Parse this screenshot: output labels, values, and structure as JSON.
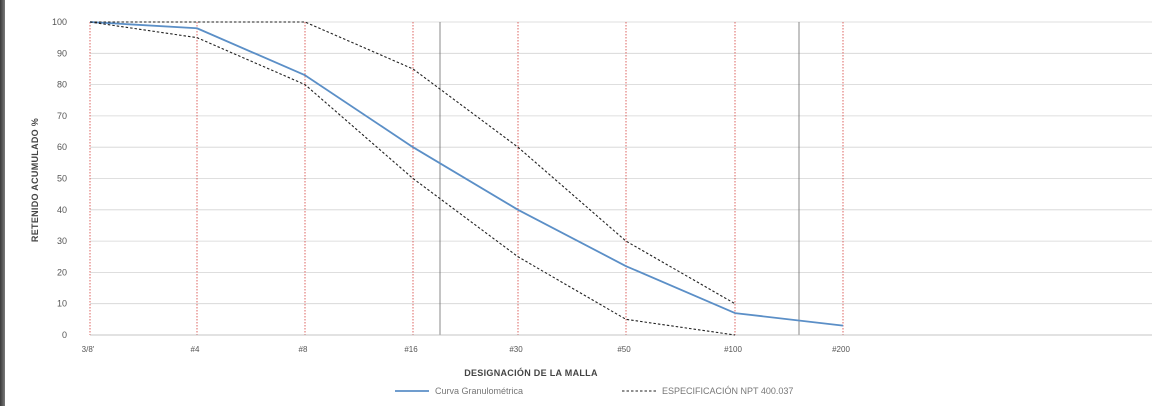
{
  "chart_data": {
    "type": "line",
    "title": "",
    "xlabel": "DESIGNACIÓN DE LA MALLA",
    "ylabel": "RETENIDO ACUMULADO %",
    "ylim": [
      0,
      100
    ],
    "yticks": [
      0,
      10,
      20,
      30,
      40,
      50,
      60,
      70,
      80,
      90,
      100
    ],
    "categories": [
      "3/8'",
      "#4",
      "#8",
      "#16",
      "#30",
      "#50",
      "#100",
      "#200"
    ],
    "series": [
      {
        "name": "Curva Granulométrica",
        "style": "solid",
        "color": "#5b8fc7",
        "x": [
          "3/8'",
          "#4",
          "#8",
          "#16",
          "#30",
          "#50",
          "#100",
          "#200"
        ],
        "values": [
          100,
          98,
          83,
          60,
          40,
          22,
          7,
          3
        ]
      },
      {
        "name": "ESPECIFICACIÓN NPT 400.037",
        "style": "dashed",
        "color": "#222222",
        "x": [
          "3/8'",
          "#4",
          "#8",
          "#16",
          "#30",
          "#50",
          "#100"
        ],
        "values": [
          100,
          95,
          80,
          50,
          25,
          5,
          0
        ]
      },
      {
        "name": "ESPECIFICACIÓN NPT 400.037",
        "legend": false,
        "style": "dashed",
        "color": "#222222",
        "x": [
          "3/8'",
          "#4",
          "#8",
          "#16",
          "#30",
          "#50",
          "#100"
        ],
        "values": [
          100,
          100,
          100,
          85,
          60,
          30,
          10
        ]
      }
    ],
    "grid": true,
    "legend_position": "bottom-center"
  }
}
